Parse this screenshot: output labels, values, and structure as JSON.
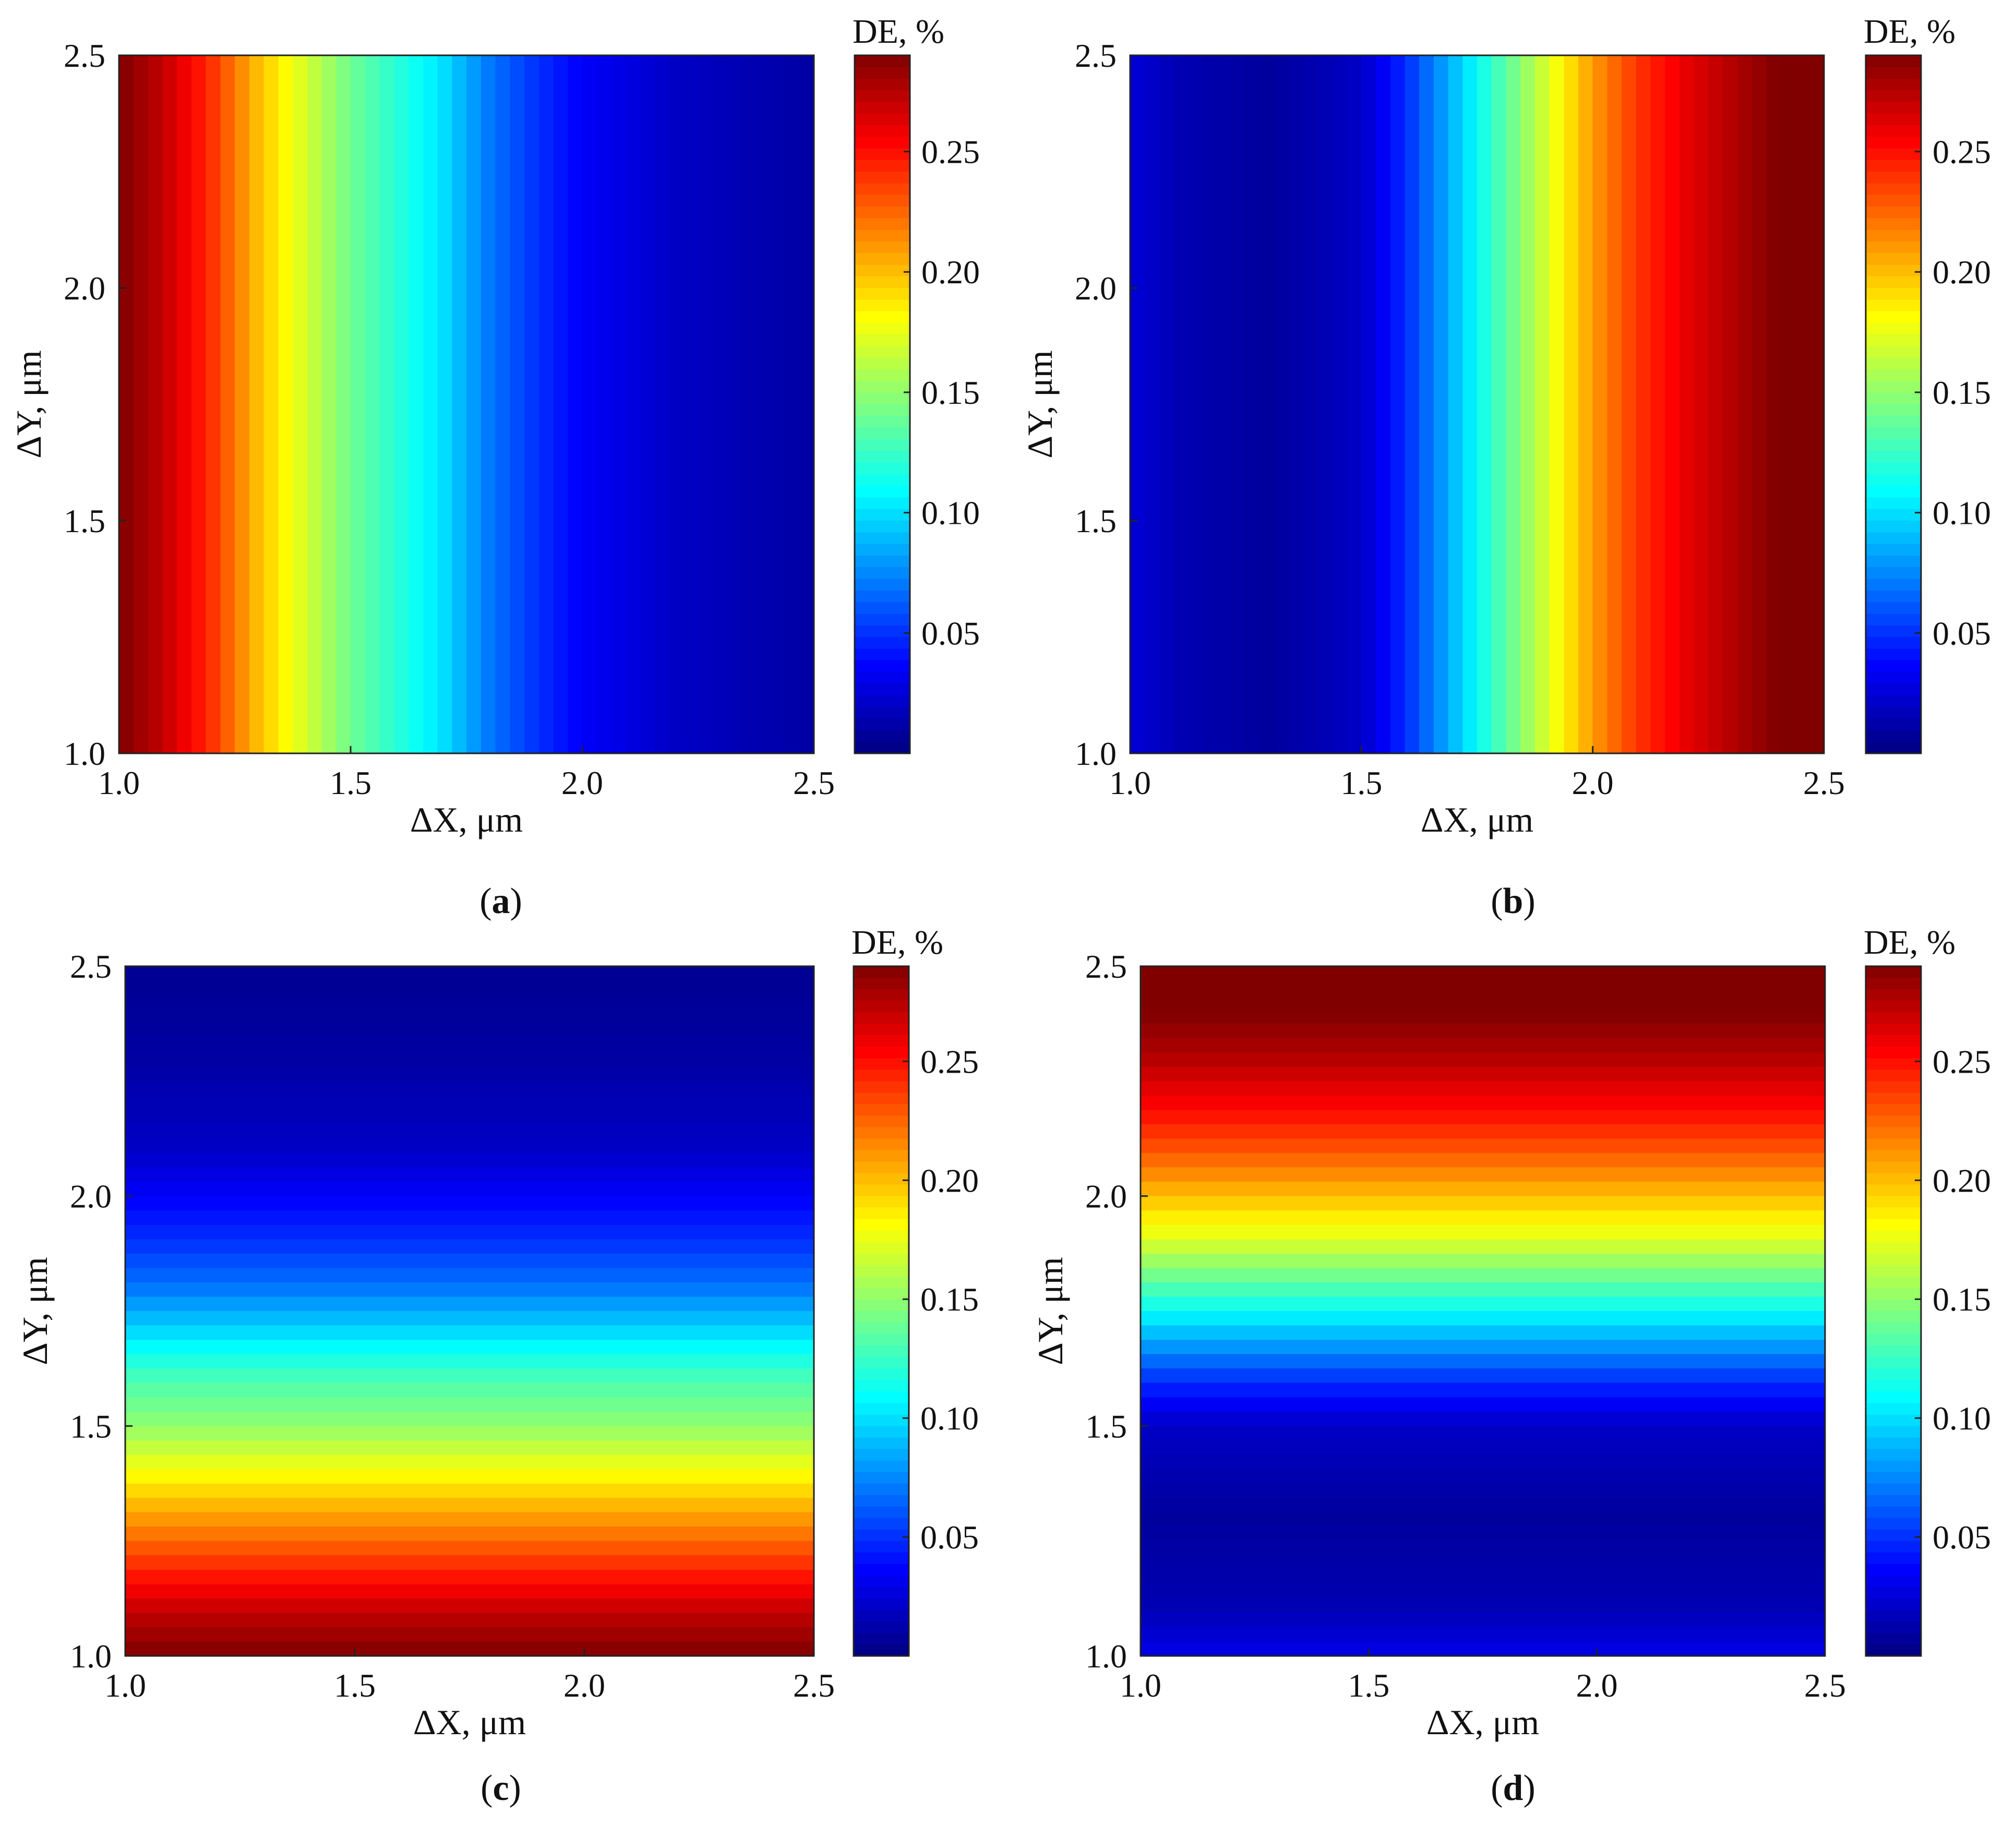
{
  "figure": {
    "panels": [
      {
        "id": "a",
        "label": "(a)",
        "letter": "a"
      },
      {
        "id": "b",
        "label": "(b)",
        "letter": "b"
      },
      {
        "id": "c",
        "label": "(c)",
        "letter": "c"
      },
      {
        "id": "d",
        "label": "(d)",
        "letter": "d"
      }
    ]
  },
  "colormap": "jet",
  "chart_data": [
    {
      "type": "heatmap",
      "panel": "a",
      "xlabel": "ΔX, μm",
      "ylabel": "ΔY, μm",
      "xlim": [
        1.0,
        2.5
      ],
      "ylim": [
        1.0,
        2.5
      ],
      "xticks": [
        "1.0",
        "1.5",
        "2.0",
        "2.5"
      ],
      "yticks": [
        "1.0",
        "1.5",
        "2.0",
        "2.5"
      ],
      "colorbar": {
        "title": "DE, %",
        "range": [
          0.0,
          0.29
        ],
        "ticks": [
          "0.05",
          "0.10",
          "0.15",
          "0.20",
          "0.25"
        ]
      },
      "gradient_axis": "x",
      "profile": [
        [
          1.0,
          0.29
        ],
        [
          1.1,
          0.27
        ],
        [
          1.2,
          0.24
        ],
        [
          1.3,
          0.2
        ],
        [
          1.4,
          0.17
        ],
        [
          1.5,
          0.14
        ],
        [
          1.6,
          0.12
        ],
        [
          1.7,
          0.1
        ],
        [
          1.8,
          0.07
        ],
        [
          1.9,
          0.05
        ],
        [
          2.0,
          0.035
        ],
        [
          2.2,
          0.02
        ],
        [
          2.5,
          0.01
        ]
      ]
    },
    {
      "type": "heatmap",
      "panel": "b",
      "xlabel": "ΔX, μm",
      "ylabel": "ΔY, μm",
      "xlim": [
        1.0,
        2.5
      ],
      "ylim": [
        1.0,
        2.5
      ],
      "xticks": [
        "1.0",
        "1.5",
        "2.0",
        "2.5"
      ],
      "yticks": [
        "1.0",
        "1.5",
        "2.0",
        "2.5"
      ],
      "colorbar": {
        "title": "DE, %",
        "range": [
          0.0,
          0.29
        ],
        "ticks": [
          "0.05",
          "0.10",
          "0.15",
          "0.20",
          "0.25"
        ]
      },
      "gradient_axis": "x",
      "profile": [
        [
          1.0,
          0.025
        ],
        [
          1.1,
          0.015
        ],
        [
          1.3,
          0.008
        ],
        [
          1.5,
          0.02
        ],
        [
          1.6,
          0.05
        ],
        [
          1.7,
          0.09
        ],
        [
          1.8,
          0.13
        ],
        [
          1.9,
          0.17
        ],
        [
          2.0,
          0.21
        ],
        [
          2.1,
          0.24
        ],
        [
          2.2,
          0.26
        ],
        [
          2.3,
          0.275
        ],
        [
          2.4,
          0.29
        ],
        [
          2.5,
          0.29
        ]
      ]
    },
    {
      "type": "heatmap",
      "panel": "c",
      "xlabel": "ΔX, μm",
      "ylabel": "ΔY, μm",
      "xlim": [
        1.0,
        2.5
      ],
      "ylim": [
        1.0,
        2.5
      ],
      "xticks": [
        "1.0",
        "1.5",
        "2.0",
        "2.5"
      ],
      "yticks": [
        "1.0",
        "1.5",
        "2.0",
        "2.5"
      ],
      "colorbar": {
        "title": "DE, %",
        "range": [
          0.0,
          0.29
        ],
        "ticks": [
          "0.05",
          "0.10",
          "0.15",
          "0.20",
          "0.25"
        ]
      },
      "gradient_axis": "y",
      "profile": [
        [
          1.0,
          0.29
        ],
        [
          1.1,
          0.27
        ],
        [
          1.2,
          0.24
        ],
        [
          1.3,
          0.21
        ],
        [
          1.4,
          0.18
        ],
        [
          1.5,
          0.15
        ],
        [
          1.6,
          0.13
        ],
        [
          1.7,
          0.1
        ],
        [
          1.8,
          0.07
        ],
        [
          1.9,
          0.05
        ],
        [
          2.0,
          0.035
        ],
        [
          2.1,
          0.02
        ],
        [
          2.3,
          0.01
        ],
        [
          2.5,
          0.005
        ]
      ]
    },
    {
      "type": "heatmap",
      "panel": "d",
      "xlabel": "ΔX, μm",
      "ylabel": "ΔY, μm",
      "xlim": [
        1.0,
        2.5
      ],
      "ylim": [
        1.0,
        2.5
      ],
      "xticks": [
        "1.0",
        "1.5",
        "2.0",
        "2.5"
      ],
      "yticks": [
        "1.0",
        "1.5",
        "2.0",
        "2.5"
      ],
      "colorbar": {
        "title": "DE, %",
        "range": [
          0.0,
          0.29
        ],
        "ticks": [
          "0.05",
          "0.10",
          "0.15",
          "0.20",
          "0.25"
        ]
      },
      "gradient_axis": "y",
      "profile": [
        [
          1.0,
          0.03
        ],
        [
          1.1,
          0.015
        ],
        [
          1.3,
          0.008
        ],
        [
          1.5,
          0.02
        ],
        [
          1.6,
          0.05
        ],
        [
          1.7,
          0.09
        ],
        [
          1.8,
          0.13
        ],
        [
          1.9,
          0.17
        ],
        [
          2.0,
          0.2
        ],
        [
          2.1,
          0.23
        ],
        [
          2.2,
          0.255
        ],
        [
          2.3,
          0.275
        ],
        [
          2.4,
          0.29
        ],
        [
          2.5,
          0.29
        ]
      ]
    }
  ]
}
